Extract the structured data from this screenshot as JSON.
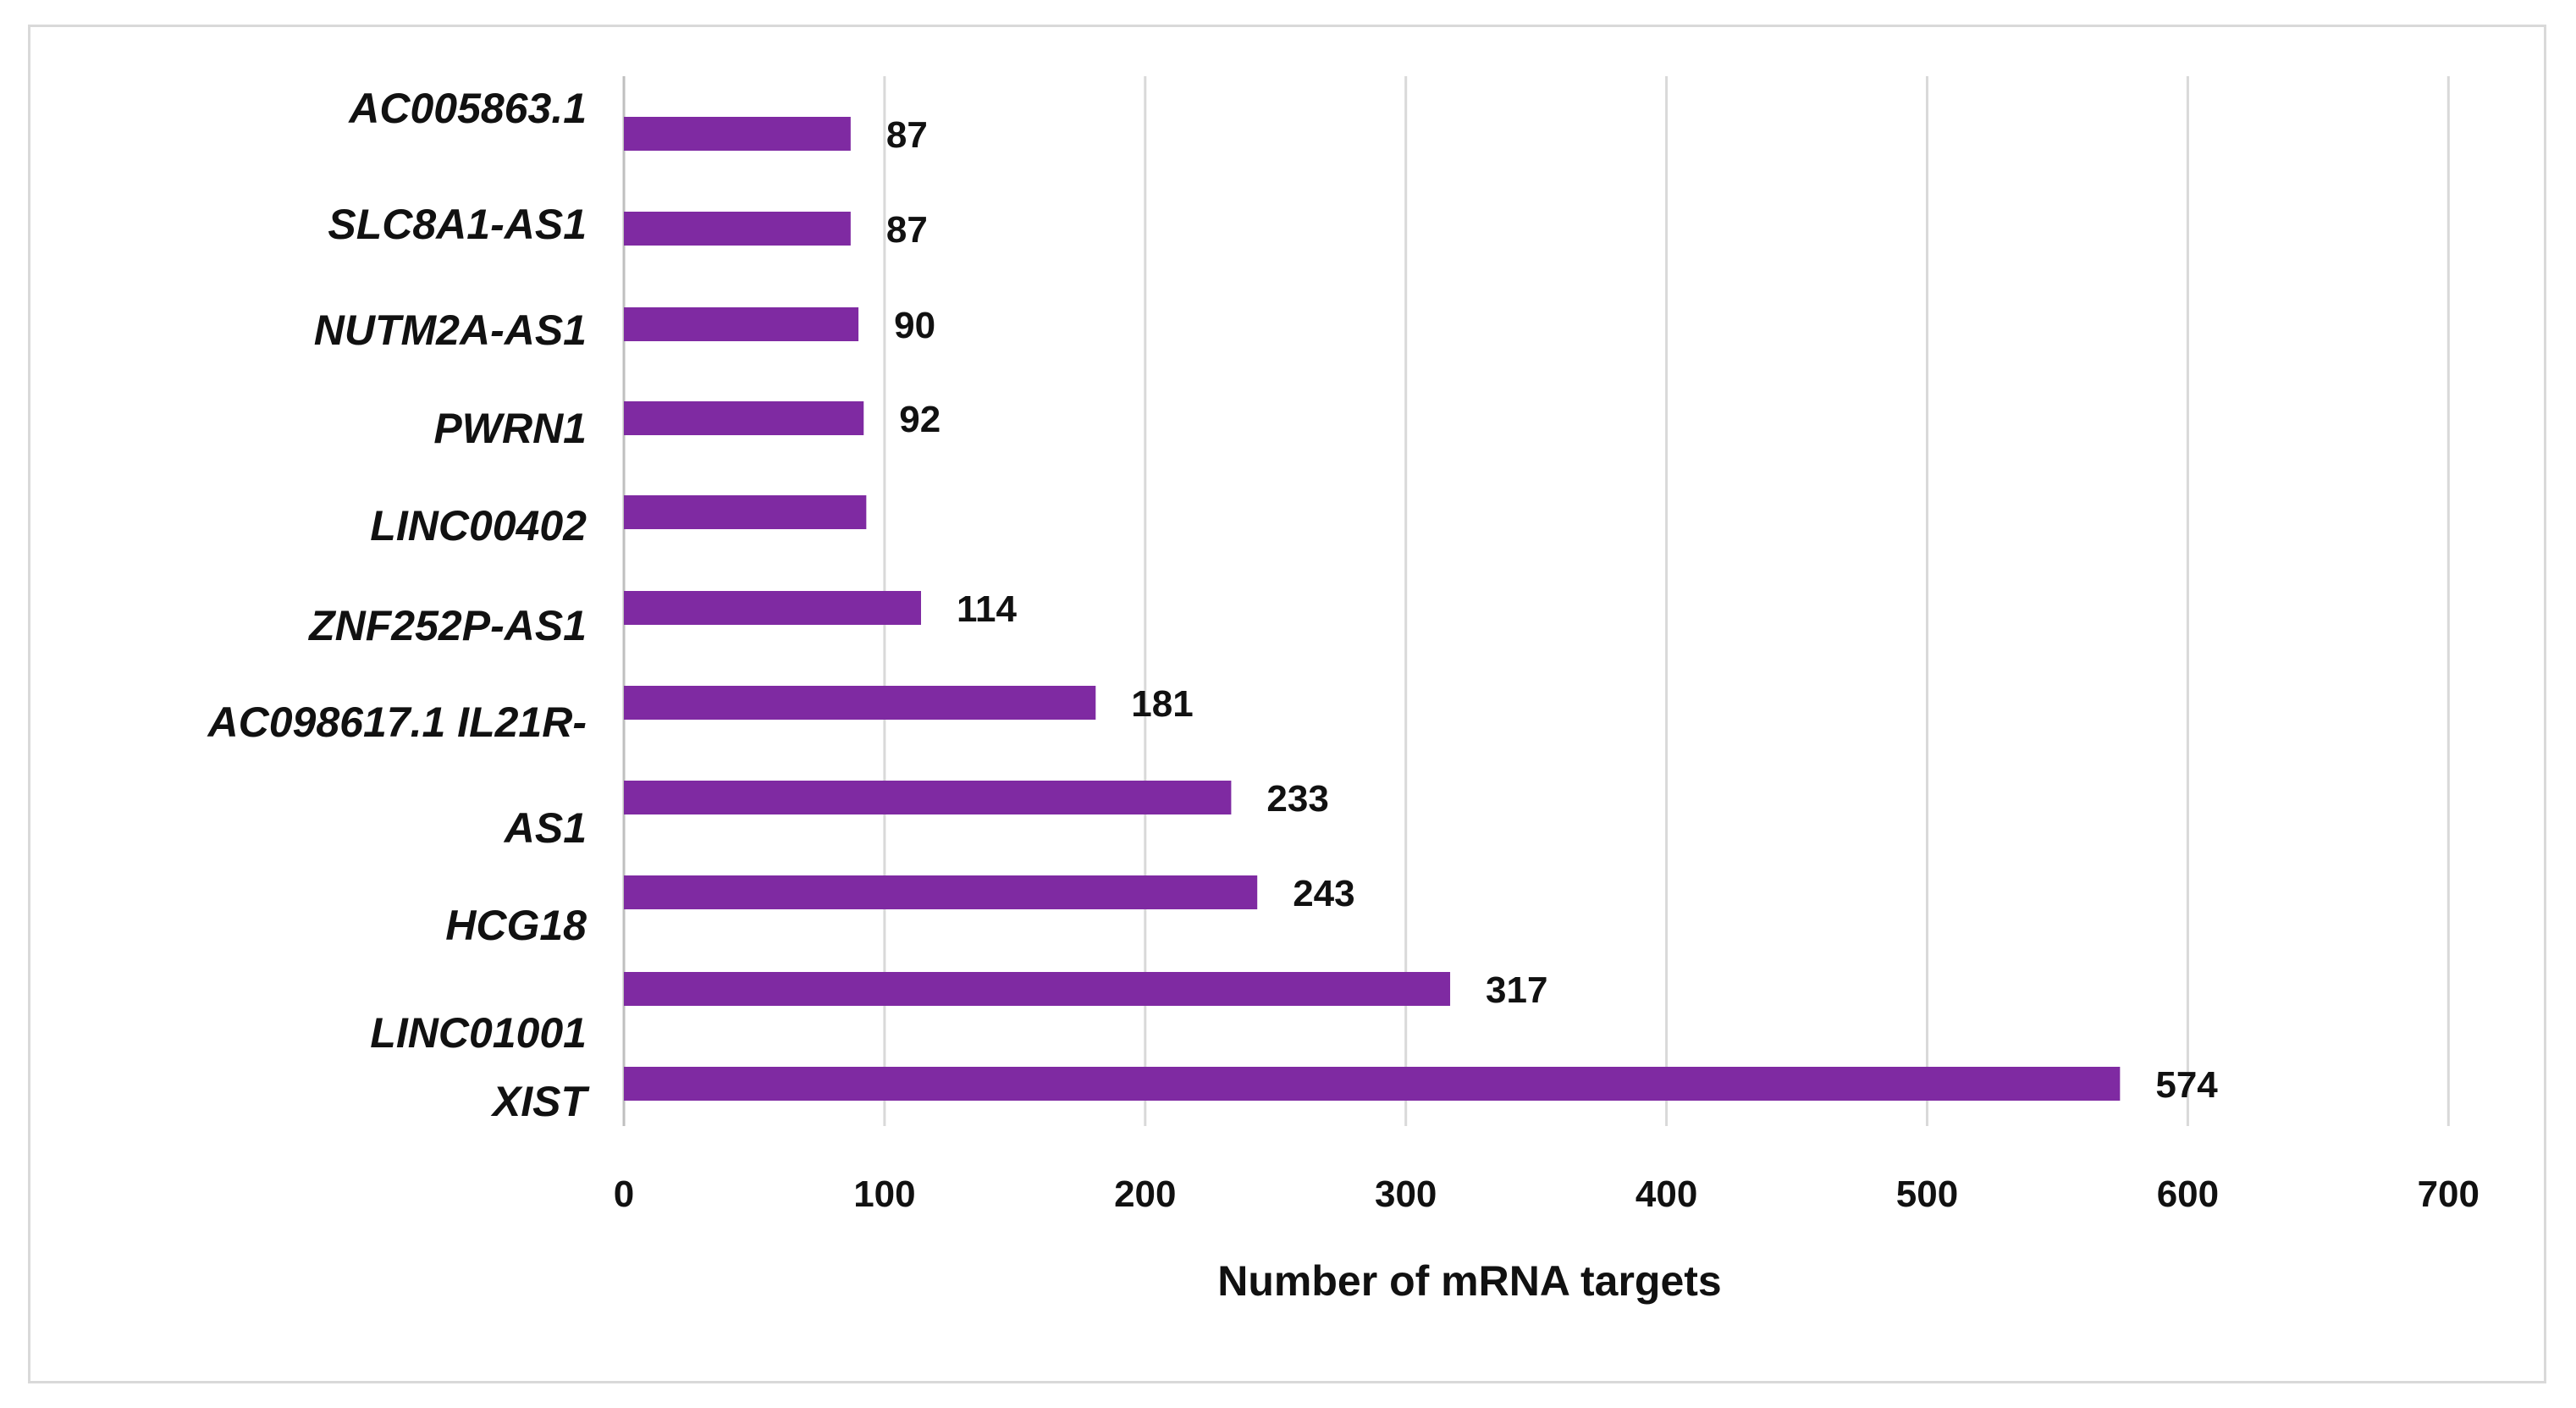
{
  "chart_data": {
    "type": "bar",
    "orientation": "horizontal",
    "xlabel": "Number of mRNA targets",
    "ylabel": "",
    "title": "",
    "xlim": [
      0,
      700
    ],
    "x_ticks": [
      "0",
      "100",
      "200",
      "300",
      "400",
      "500",
      "600",
      "700"
    ],
    "grid": "vertical",
    "bar_color": "#7F2AA2",
    "category_labels": [
      "AC005863.1",
      "SLC8A1-AS1",
      "NUTM2A-AS1",
      "PWRN1",
      "LINC00402",
      "ZNF252P-AS1",
      "AC098617.1 IL21R-",
      "AS1",
      "HCG18",
      "LINC01001",
      "XIST"
    ],
    "bars": [
      {
        "value": 87,
        "label": "87"
      },
      {
        "value": 87,
        "label": "87"
      },
      {
        "value": 90,
        "label": "90"
      },
      {
        "value": 92,
        "label": "92"
      },
      {
        "value": 93,
        "label": ""
      },
      {
        "value": 114,
        "label": "114"
      },
      {
        "value": 181,
        "label": "181"
      },
      {
        "value": 233,
        "label": "233"
      },
      {
        "value": 243,
        "label": "243"
      },
      {
        "value": 317,
        "label": "317"
      },
      {
        "value": 574,
        "label": "574"
      }
    ]
  }
}
